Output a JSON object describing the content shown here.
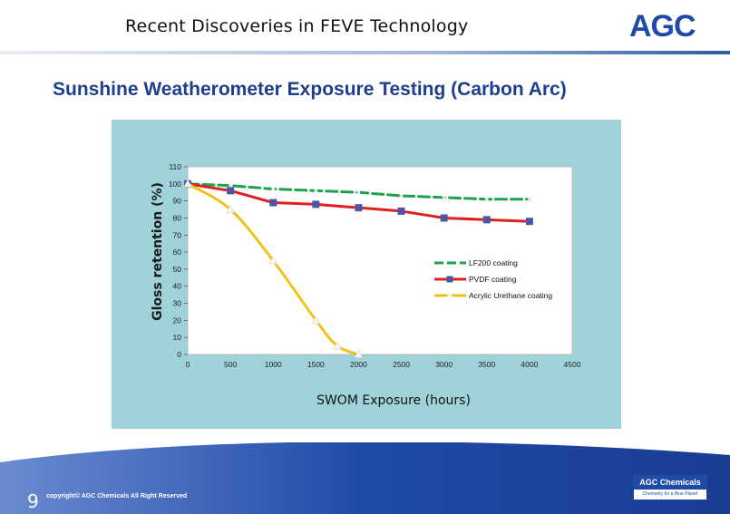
{
  "header": {
    "title": "Recent Discoveries in FEVE Technology",
    "logo_text": "AGC"
  },
  "slide": {
    "heading": "Sunshine Weatherometer Exposure Testing (Carbon Arc)",
    "page_number": "9",
    "copyright": "copyright© AGC Chemicals All Right Reserved",
    "badge_line1": "AGC Chemicals",
    "badge_line2": "Chemistry for a Blue Planet"
  },
  "colors": {
    "brand_blue": "#1f4aa8",
    "chart_bg": "#9fd2d9",
    "plot_bg": "#ffffff",
    "lf200": "#1aa34a",
    "pvdf": "#e02020",
    "acrylic": "#f2c21b",
    "marker": "#4b56a6"
  },
  "chart_data": {
    "type": "line",
    "xlabel": "SWOM  Exposure (hours)",
    "ylabel": "Gloss retention (%)",
    "xlim": [
      0,
      4500
    ],
    "ylim": [
      0,
      110
    ],
    "xticks": [
      0,
      500,
      1000,
      1500,
      2000,
      2500,
      3000,
      3500,
      4000,
      4500
    ],
    "yticks": [
      0,
      10,
      20,
      30,
      40,
      50,
      60,
      70,
      80,
      90,
      100,
      110
    ],
    "grid": false,
    "legend_position": "right",
    "series": [
      {
        "name": "LF200 coating",
        "style": "dashed",
        "marker": "x",
        "x": [
          0,
          500,
          1000,
          1500,
          2000,
          2500,
          3000,
          3500,
          4000
        ],
        "y": [
          100,
          99,
          97,
          96,
          95,
          93,
          92,
          91,
          91
        ]
      },
      {
        "name": "PVDF coating",
        "style": "solid",
        "marker": "square",
        "x": [
          0,
          500,
          1000,
          1500,
          2000,
          2500,
          3000,
          3500,
          4000
        ],
        "y": [
          100,
          96,
          89,
          88,
          86,
          84,
          80,
          79,
          78
        ]
      },
      {
        "name": "Acrylic Urethane coating",
        "style": "solid",
        "marker": "triangle",
        "x": [
          0,
          500,
          1000,
          1500,
          1750,
          2000
        ],
        "y": [
          100,
          85,
          55,
          20,
          5,
          0
        ]
      }
    ]
  }
}
